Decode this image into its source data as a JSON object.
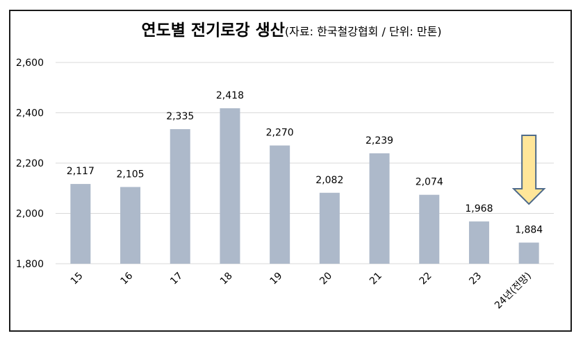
{
  "title": {
    "main": "연도별 전기로강 생산",
    "sub": "(자료: 한국철강협회 / 단위: 만톤)"
  },
  "colors": {
    "bar": "#adb9ca",
    "grid": "#d9d9d9",
    "arrow_fill": "#ffe699",
    "arrow_stroke": "#4f6b8a"
  },
  "annotation": {
    "type": "down-arrow-icon",
    "target": "24년(전망)"
  },
  "chart_data": {
    "type": "bar",
    "title": "연도별 전기로강 생산",
    "subtitle": "(자료: 한국철강협회 / 단위: 만톤)",
    "categories": [
      "15",
      "16",
      "17",
      "18",
      "19",
      "20",
      "21",
      "22",
      "23",
      "24년(전망)"
    ],
    "values": [
      2117,
      2105,
      2335,
      2418,
      2270,
      2082,
      2239,
      2074,
      1968,
      1884
    ],
    "value_labels": [
      "2,117",
      "2,105",
      "2,335",
      "2,418",
      "2,270",
      "2,082",
      "2,239",
      "2,074",
      "1,968",
      "1,884"
    ],
    "ylim": [
      1800,
      2600
    ],
    "yticks": [
      1800,
      2000,
      2200,
      2400,
      2600
    ],
    "ytick_labels": [
      "1,800",
      "2,000",
      "2,200",
      "2,400",
      "2,600"
    ],
    "xlabel": "",
    "ylabel": "",
    "grid": true,
    "legend": "none"
  }
}
